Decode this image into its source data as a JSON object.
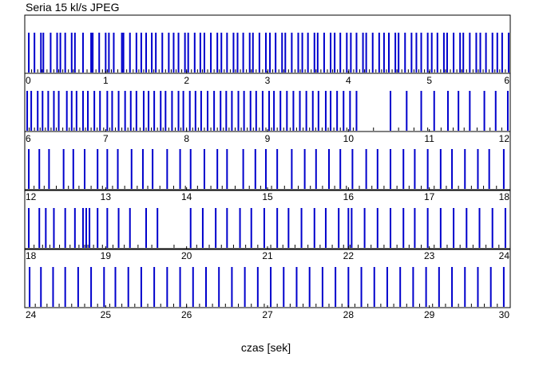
{
  "chart_data": {
    "type": "bar",
    "title": "Seria 15 kl/s JPEG",
    "xlabel": "czas [sek]",
    "ylabel": "",
    "grid": false,
    "legend": "none",
    "colors": {
      "frame": "#0000cc",
      "minor": "#000000",
      "axis": "#000000"
    },
    "panels": [
      {
        "xlim": [
          0,
          6
        ],
        "tick_labels": [
          "0",
          "1",
          "2",
          "3",
          "4",
          "5",
          "6"
        ],
        "frames": [
          0.05,
          0.12,
          0.2,
          0.23,
          0.32,
          0.4,
          0.44,
          0.5,
          0.58,
          0.62,
          0.72,
          0.82,
          0.84,
          0.92,
          1.0,
          1.04,
          1.1,
          1.2,
          1.22,
          1.3,
          1.38,
          1.44,
          1.5,
          1.57,
          1.62,
          1.7,
          1.78,
          1.84,
          1.9,
          1.98,
          2.02,
          2.1,
          2.17,
          2.22,
          2.3,
          2.38,
          2.43,
          2.5,
          2.58,
          2.63,
          2.7,
          2.78,
          2.82,
          2.9,
          2.98,
          3.03,
          3.1,
          3.18,
          3.22,
          3.3,
          3.38,
          3.43,
          3.5,
          3.58,
          3.62,
          3.7,
          3.78,
          3.83,
          3.9,
          3.98,
          4.03,
          4.1,
          4.18,
          4.22,
          4.3,
          4.38,
          4.44,
          4.5,
          4.58,
          4.62,
          4.7,
          4.78,
          4.84,
          4.9,
          4.98,
          5.03,
          5.1,
          5.18,
          5.22,
          5.3,
          5.38,
          5.42,
          5.5,
          5.58,
          5.63,
          5.7,
          5.78,
          5.84,
          5.9,
          5.98
        ]
      },
      {
        "xlim": [
          6,
          12
        ],
        "tick_labels": [
          "6",
          "7",
          "8",
          "9",
          "10",
          "11",
          "12"
        ],
        "frames": [
          6.03,
          6.08,
          6.16,
          6.22,
          6.29,
          6.36,
          6.42,
          6.52,
          6.58,
          6.64,
          6.72,
          6.78,
          6.86,
          6.93,
          7.02,
          7.08,
          7.16,
          7.24,
          7.31,
          7.38,
          7.47,
          7.53,
          7.6,
          7.68,
          7.74,
          7.82,
          7.9,
          7.96,
          8.04,
          8.11,
          8.18,
          8.26,
          8.34,
          8.42,
          8.49,
          8.56,
          8.64,
          8.71,
          8.79,
          8.86,
          8.94,
          9.02,
          9.08,
          9.16,
          9.24,
          9.32,
          9.4,
          9.48,
          9.56,
          9.63,
          9.72,
          9.78,
          9.86,
          9.94,
          10.02,
          10.1,
          10.52,
          10.72,
          10.9,
          11.06,
          11.23,
          11.36,
          11.5,
          11.68,
          11.82,
          11.97
        ]
      },
      {
        "xlim": [
          12,
          18
        ],
        "tick_labels": [
          "12",
          "13",
          "14",
          "15",
          "16",
          "17",
          "18"
        ],
        "frames": [
          12.05,
          12.18,
          12.3,
          12.48,
          12.6,
          12.74,
          12.9,
          13.02,
          13.15,
          13.32,
          13.46,
          13.58,
          13.76,
          13.92,
          14.05,
          14.22,
          14.38,
          14.5,
          14.7,
          14.85,
          14.98,
          15.12,
          15.3,
          15.46,
          15.6,
          15.76,
          15.9,
          16.05,
          16.22,
          16.36,
          16.52,
          16.68,
          16.82,
          16.98,
          17.14,
          17.28,
          17.44,
          17.6,
          17.74,
          17.92
        ]
      },
      {
        "xlim": [
          18,
          24
        ],
        "tick_labels": [
          "18",
          "19",
          "20",
          "21",
          "22",
          "23",
          "24"
        ],
        "frames": [
          18.05,
          18.18,
          18.26,
          18.36,
          18.5,
          18.62,
          18.72,
          18.76,
          18.8,
          18.9,
          19.02,
          19.16,
          19.3,
          19.5,
          19.64,
          20.05,
          20.2,
          20.36,
          20.5,
          20.66,
          20.8,
          20.96,
          21.12,
          21.26,
          21.42,
          21.58,
          21.72,
          21.88,
          22.0,
          22.04,
          22.2,
          22.36,
          22.52,
          22.68,
          22.82,
          22.98,
          23.14,
          23.3,
          23.46,
          23.62,
          23.78,
          23.94
        ]
      },
      {
        "xlim": [
          24,
          30
        ],
        "tick_labels": [
          "24",
          "25",
          "26",
          "27",
          "28",
          "29",
          "30"
        ],
        "frames": [
          24.06,
          24.2,
          24.35,
          24.5,
          24.66,
          24.82,
          24.98,
          25.12,
          25.28,
          25.44,
          25.6,
          25.76,
          25.92,
          26.08,
          26.24,
          26.4,
          26.56,
          26.72,
          26.88,
          27.04,
          27.2,
          27.36,
          27.52,
          27.68,
          27.84,
          28.0,
          28.16,
          28.32,
          28.48,
          28.64,
          28.8,
          28.96,
          29.12,
          29.28,
          29.44,
          29.6,
          29.76,
          29.92
        ]
      }
    ]
  }
}
